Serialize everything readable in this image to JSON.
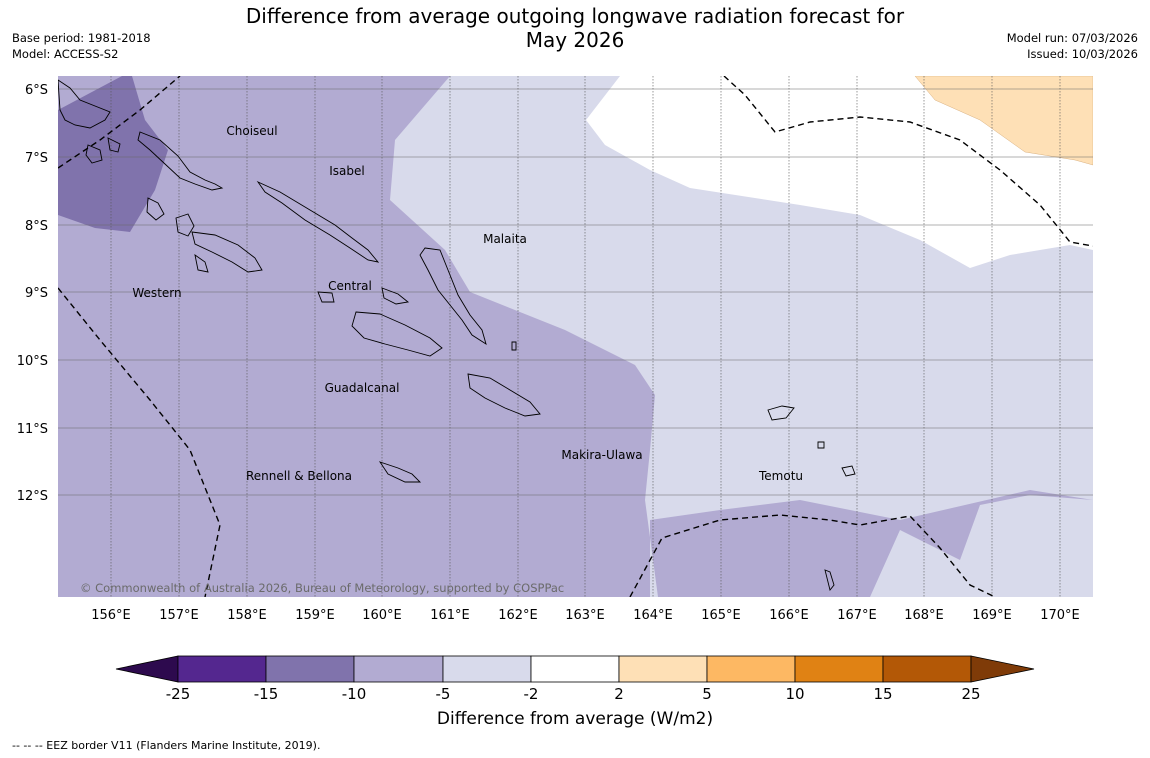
{
  "header": {
    "title_line1": "Difference from average outgoing longwave radiation forecast for",
    "title_line2": "May 2026",
    "base_period": "Base period: 1981-2018",
    "model": "Model: ACCESS-S2",
    "model_run": "Model run: 07/03/2026",
    "issued": "Issued: 10/03/2026"
  },
  "map": {
    "latitude_labels": [
      "6°S",
      "7°S",
      "8°S",
      "9°S",
      "10°S",
      "11°S",
      "12°S"
    ],
    "longitude_labels": [
      "156°E",
      "157°E",
      "158°E",
      "159°E",
      "160°E",
      "161°E",
      "162°E",
      "163°E",
      "164°E",
      "165°E",
      "166°E",
      "167°E",
      "168°E",
      "169°E",
      "170°E"
    ],
    "regions": {
      "choiseul": "Choiseul",
      "isabel": "Isabel",
      "malaita": "Malaita",
      "western": "Western",
      "central": "Central",
      "guadalcanal": "Guadalcanal",
      "makira_ulawa": "Makira-Ulawa",
      "rennell_bellona": "Rennell & Bellona",
      "temotu": "Temotu"
    },
    "copyright": "© Commonwealth of Australia 2026, Bureau of Meteorology, supported by COSPPac"
  },
  "colorbar": {
    "ticks": [
      "-25",
      "-15",
      "-10",
      "-5",
      "-2",
      "2",
      "5",
      "10",
      "15",
      "25"
    ],
    "label": "Difference from average (W/m2)",
    "colors": {
      "below_min": "#2d0a4e",
      "m25_m15": "#54278f",
      "m15_m10": "#8073ac",
      "m10_m5": "#b2abd2",
      "m5_m2": "#d8daeb",
      "m2_p2": "#ffffff",
      "p2_p5": "#fee0b6",
      "p5_p10": "#fdb863",
      "p10_p15": "#e08214",
      "p15_p25": "#b35806",
      "above_max": "#7f3b08"
    }
  },
  "footnote": "--  --  -- EEZ border V11 (Flanders Marine Institute, 2019)."
}
